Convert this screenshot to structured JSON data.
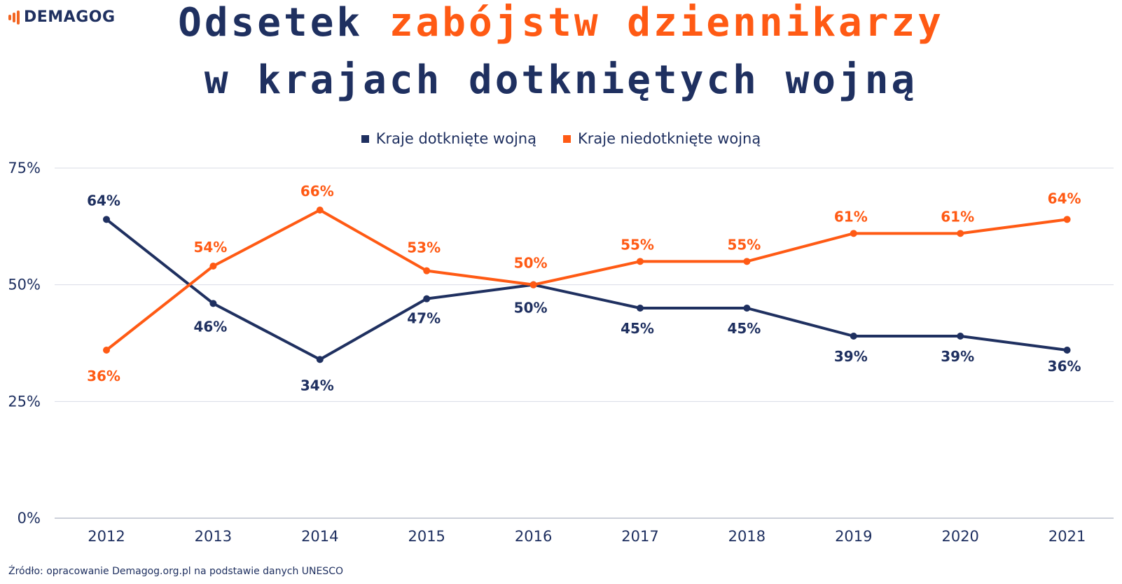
{
  "brand": {
    "logo_text": "DEMAGOG",
    "logo_icon": "sound-wave-icon"
  },
  "title": {
    "line1_prefix": "Odsetek ",
    "line1_highlight": "zabójstw dziennikarzy",
    "line2": "w krajach dotkniętych wojną"
  },
  "source": "Źródło: opracowanie Demagog.org.pl na podstawie danych UNESCO",
  "colors": {
    "navy": "#1f3060",
    "orange": "#ff5a14",
    "grid": "#d8dbe6"
  },
  "chart_data": {
    "type": "line",
    "title": "Odsetek zabójstw dziennikarzy w krajach dotkniętych wojną",
    "categories": [
      "2012",
      "2013",
      "2014",
      "2015",
      "2016",
      "2017",
      "2018",
      "2019",
      "2020",
      "2021"
    ],
    "series": [
      {
        "name": "Kraje dotknięte wojną",
        "color": "#1f3060",
        "values": [
          64,
          46,
          34,
          47,
          50,
          45,
          45,
          39,
          39,
          36
        ]
      },
      {
        "name": "Kraje niedotknięte wojną",
        "color": "#ff5a14",
        "values": [
          36,
          54,
          66,
          53,
          50,
          55,
          55,
          61,
          61,
          64
        ]
      }
    ],
    "value_labels": {
      "Kraje dotknięte wojną": [
        "64%",
        "46%",
        "34%",
        "47%",
        "50%",
        "45%",
        "45%",
        "39%",
        "39%",
        "36%"
      ],
      "Kraje niedotknięte wojną": [
        "36%",
        "54%",
        "66%",
        "53%",
        "50%",
        "55%",
        "55%",
        "61%",
        "61%",
        "64%"
      ]
    },
    "y_ticks": [
      0,
      25,
      50,
      75
    ],
    "y_tick_labels": [
      "0%",
      "25%",
      "50%",
      "75%"
    ],
    "ylim": [
      0,
      75
    ],
    "grid": true,
    "legend": "top-center"
  }
}
